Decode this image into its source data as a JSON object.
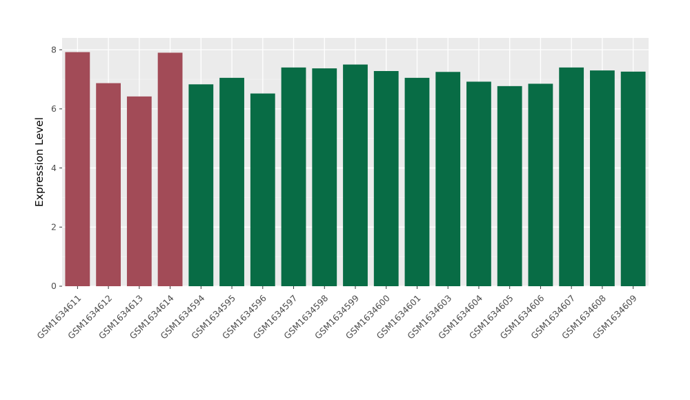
{
  "figure": {
    "background": "#ffffff",
    "panel_background": "#ebebeb",
    "grid_major_color": "#ffffff",
    "grid_minor_color": "#f5f5f5",
    "tick_color": "#333333",
    "tick_label_color": "#4d4d4d",
    "axis_title_color": "#000000"
  },
  "chart_data": {
    "type": "bar",
    "title": "",
    "xlabel": "",
    "ylabel": "Expression Level",
    "ylim": [
      0,
      8.4
    ],
    "yticks": [
      0,
      2,
      4,
      6,
      8
    ],
    "yticks_minor": [
      1,
      3,
      5,
      7
    ],
    "grid": true,
    "legend_position": "none",
    "categories": [
      "GSM1634611",
      "GSM1634612",
      "GSM1634613",
      "GSM1634614",
      "GSM1634594",
      "GSM1634595",
      "GSM1634596",
      "GSM1634597",
      "GSM1634598",
      "GSM1634599",
      "GSM1634600",
      "GSM1634601",
      "GSM1634603",
      "GSM1634604",
      "GSM1634605",
      "GSM1634606",
      "GSM1634607",
      "GSM1634608",
      "GSM1634609"
    ],
    "values": [
      7.92,
      6.87,
      6.42,
      7.9,
      6.83,
      7.05,
      6.52,
      7.4,
      7.37,
      7.5,
      7.28,
      7.05,
      7.25,
      6.92,
      6.77,
      6.85,
      7.4,
      7.3,
      7.26
    ],
    "bar_groups": [
      "group-1",
      "group-1",
      "group-1",
      "group-1",
      "group-2",
      "group-2",
      "group-2",
      "group-2",
      "group-2",
      "group-2",
      "group-2",
      "group-2",
      "group-2",
      "group-2",
      "group-2",
      "group-2",
      "group-2",
      "group-2",
      "group-2"
    ],
    "group_colors": {
      "group-1": "#a24b57",
      "group-2": "#086c45"
    }
  }
}
